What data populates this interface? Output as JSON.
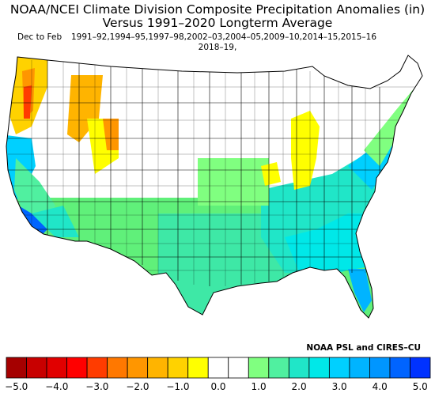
{
  "title_line1": "NOAA/NCEI Climate Division Composite Precipitation Anomalies (in)",
  "title_line2": "Versus 1991–2020 Longterm Average",
  "season": "Dec to Feb",
  "years_line1": "1991–92,1994–95,1997–98,2002–03,2004–05,2009–10,2014–15,2015–16",
  "years_line2": "2018–19,",
  "credit": "NOAA PSL and CIRES–CU",
  "colorbar": {
    "colors": [
      "#a50000",
      "#c80000",
      "#e10000",
      "#ff0000",
      "#ff3c00",
      "#ff7800",
      "#ff9600",
      "#ffb400",
      "#ffd200",
      "#ffff00",
      "#ffffff",
      "#ffffff",
      "#80ff80",
      "#50f0a0",
      "#20e6c8",
      "#00e8e8",
      "#00d0ff",
      "#00b4ff",
      "#0096ff",
      "#0064ff",
      "#0032ff"
    ],
    "tick_labels": [
      "−5.0",
      "−4.0",
      "−3.0",
      "−2.0",
      "−1.0",
      "0.0",
      "1.0",
      "2.0",
      "3.0",
      "4.0",
      "5.0"
    ],
    "range": [
      -5.0,
      5.0
    ]
  },
  "map": {
    "region": "Contiguous United States",
    "variable": "precipitation anomaly",
    "units": "in"
  }
}
